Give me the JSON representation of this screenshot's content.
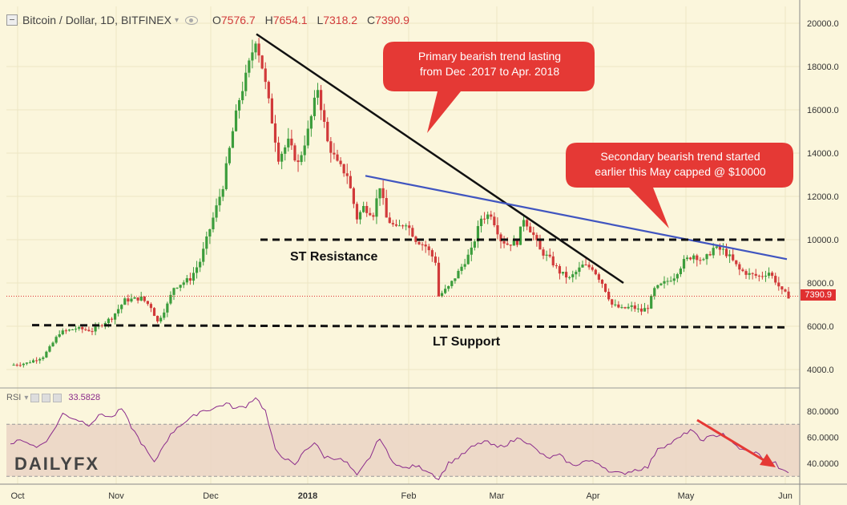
{
  "header": {
    "symbol": "Bitcoin / Dollar, 1D, BITFINEX",
    "o_label": "O",
    "o_value": "7576.7",
    "h_label": "H",
    "h_value": "7654.1",
    "l_label": "L",
    "l_value": "7318.2",
    "c_label": "C",
    "c_value": "7390.9"
  },
  "annotations": {
    "primary_line1": "Primary bearish trend lasting",
    "primary_line2": "from Dec .2017 to Apr. 2018",
    "secondary_line1": "Secondary bearish trend started",
    "secondary_line2": "earlier this May capped @ $10000",
    "st_resistance": "ST Resistance",
    "lt_support": "LT Support"
  },
  "last_price": "7390.9",
  "rsi": {
    "label": "RSI",
    "value": "33.5828"
  },
  "logo": {
    "text": "DAILY",
    "suffix": "FX"
  },
  "colors": {
    "up": "#3c9d3c",
    "down": "#d13a3a",
    "rsi_line": "#8b2b8b",
    "trend_primary": "#111111",
    "trend_secondary": "#4055c0",
    "callout": "#e53935"
  },
  "chart_data": {
    "type": "candlestick",
    "price_axis": {
      "ticks": [
        4000,
        6000,
        8000,
        10000,
        12000,
        14000,
        16000,
        18000,
        20000
      ],
      "labels": [
        "4000.0",
        "6000.0",
        "8000.0",
        "10000.0",
        "12000.0",
        "14000.0",
        "16000.0",
        "18000.0",
        "20000.0"
      ],
      "range": [
        3000,
        20500
      ]
    },
    "time_axis": {
      "labels": [
        "Oct",
        "Nov",
        "Dec",
        "2018",
        "Feb",
        "Mar",
        "Apr",
        "May",
        "Jun"
      ]
    },
    "rsi_axis": {
      "ticks": [
        40,
        60,
        80
      ],
      "labels": [
        "40.0000",
        "60.0000",
        "80.0000"
      ],
      "band": [
        30,
        70
      ],
      "range": [
        20,
        95
      ]
    },
    "close_path": [
      [
        0,
        4200
      ],
      [
        5,
        4300
      ],
      [
        10,
        4600
      ],
      [
        12,
        5000
      ],
      [
        15,
        5700
      ],
      [
        20,
        5900
      ],
      [
        25,
        5800
      ],
      [
        28,
        6100
      ],
      [
        31,
        6400
      ],
      [
        35,
        7200
      ],
      [
        40,
        7300
      ],
      [
        43,
        6900
      ],
      [
        45,
        6200
      ],
      [
        48,
        7000
      ],
      [
        50,
        7800
      ],
      [
        55,
        8200
      ],
      [
        58,
        9000
      ],
      [
        62,
        11000
      ],
      [
        65,
        12500
      ],
      [
        68,
        15000
      ],
      [
        70,
        16500
      ],
      [
        72,
        17500
      ],
      [
        75,
        19300
      ],
      [
        77,
        18000
      ],
      [
        80,
        15500
      ],
      [
        82,
        13800
      ],
      [
        85,
        14500
      ],
      [
        88,
        13500
      ],
      [
        91,
        15000
      ],
      [
        94,
        17000
      ],
      [
        97,
        14500
      ],
      [
        100,
        13500
      ],
      [
        103,
        13000
      ],
      [
        106,
        11000
      ],
      [
        108,
        11500
      ],
      [
        111,
        11200
      ],
      [
        113,
        12500
      ],
      [
        115,
        11000
      ],
      [
        118,
        10500
      ],
      [
        121,
        10800
      ],
      [
        124,
        10000
      ],
      [
        127,
        9700
      ],
      [
        130,
        9000
      ],
      [
        131,
        7400
      ],
      [
        134,
        7800
      ],
      [
        137,
        8500
      ],
      [
        141,
        9500
      ],
      [
        144,
        11000
      ],
      [
        147,
        11200
      ],
      [
        150,
        10000
      ],
      [
        152,
        9800
      ],
      [
        155,
        9900
      ],
      [
        157,
        11000
      ],
      [
        160,
        10200
      ],
      [
        162,
        9500
      ],
      [
        165,
        9100
      ],
      [
        168,
        8500
      ],
      [
        171,
        8200
      ],
      [
        175,
        8800
      ],
      [
        178,
        8700
      ],
      [
        181,
        8000
      ],
      [
        184,
        7000
      ],
      [
        187,
        6800
      ],
      [
        190,
        6900
      ],
      [
        193,
        6700
      ],
      [
        195,
        6900
      ],
      [
        197,
        7700
      ],
      [
        200,
        8000
      ],
      [
        203,
        8300
      ],
      [
        206,
        9000
      ],
      [
        209,
        9300
      ],
      [
        212,
        9000
      ],
      [
        215,
        9600
      ],
      [
        218,
        9500
      ],
      [
        220,
        9200
      ],
      [
        223,
        8600
      ],
      [
        226,
        8400
      ],
      [
        229,
        8300
      ],
      [
        232,
        8500
      ],
      [
        234,
        8100
      ],
      [
        236,
        7600
      ],
      [
        238,
        7390
      ]
    ],
    "rsi_path": [
      [
        0,
        55
      ],
      [
        4,
        58
      ],
      [
        8,
        52
      ],
      [
        12,
        60
      ],
      [
        16,
        78
      ],
      [
        20,
        74
      ],
      [
        24,
        70
      ],
      [
        28,
        78
      ],
      [
        31,
        75
      ],
      [
        34,
        82
      ],
      [
        37,
        68
      ],
      [
        41,
        52
      ],
      [
        44,
        40
      ],
      [
        47,
        55
      ],
      [
        51,
        68
      ],
      [
        55,
        74
      ],
      [
        58,
        80
      ],
      [
        62,
        82
      ],
      [
        66,
        86
      ],
      [
        69,
        82
      ],
      [
        72,
        84
      ],
      [
        75,
        91
      ],
      [
        78,
        80
      ],
      [
        81,
        50
      ],
      [
        84,
        44
      ],
      [
        87,
        38
      ],
      [
        90,
        50
      ],
      [
        93,
        56
      ],
      [
        96,
        45
      ],
      [
        100,
        44
      ],
      [
        103,
        40
      ],
      [
        106,
        30
      ],
      [
        110,
        45
      ],
      [
        113,
        60
      ],
      [
        116,
        44
      ],
      [
        120,
        36
      ],
      [
        124,
        38
      ],
      [
        128,
        34
      ],
      [
        131,
        28
      ],
      [
        134,
        40
      ],
      [
        138,
        46
      ],
      [
        141,
        52
      ],
      [
        145,
        57
      ],
      [
        149,
        52
      ],
      [
        152,
        55
      ],
      [
        156,
        60
      ],
      [
        160,
        52
      ],
      [
        164,
        44
      ],
      [
        168,
        46
      ],
      [
        172,
        38
      ],
      [
        176,
        42
      ],
      [
        180,
        40
      ],
      [
        184,
        33
      ],
      [
        187,
        32
      ],
      [
        191,
        35
      ],
      [
        195,
        37
      ],
      [
        198,
        52
      ],
      [
        201,
        54
      ],
      [
        205,
        60
      ],
      [
        208,
        66
      ],
      [
        211,
        58
      ],
      [
        214,
        60
      ],
      [
        218,
        63
      ],
      [
        221,
        55
      ],
      [
        224,
        50
      ],
      [
        228,
        48
      ],
      [
        231,
        43
      ],
      [
        234,
        40
      ],
      [
        236,
        34
      ],
      [
        238,
        33
      ]
    ]
  }
}
